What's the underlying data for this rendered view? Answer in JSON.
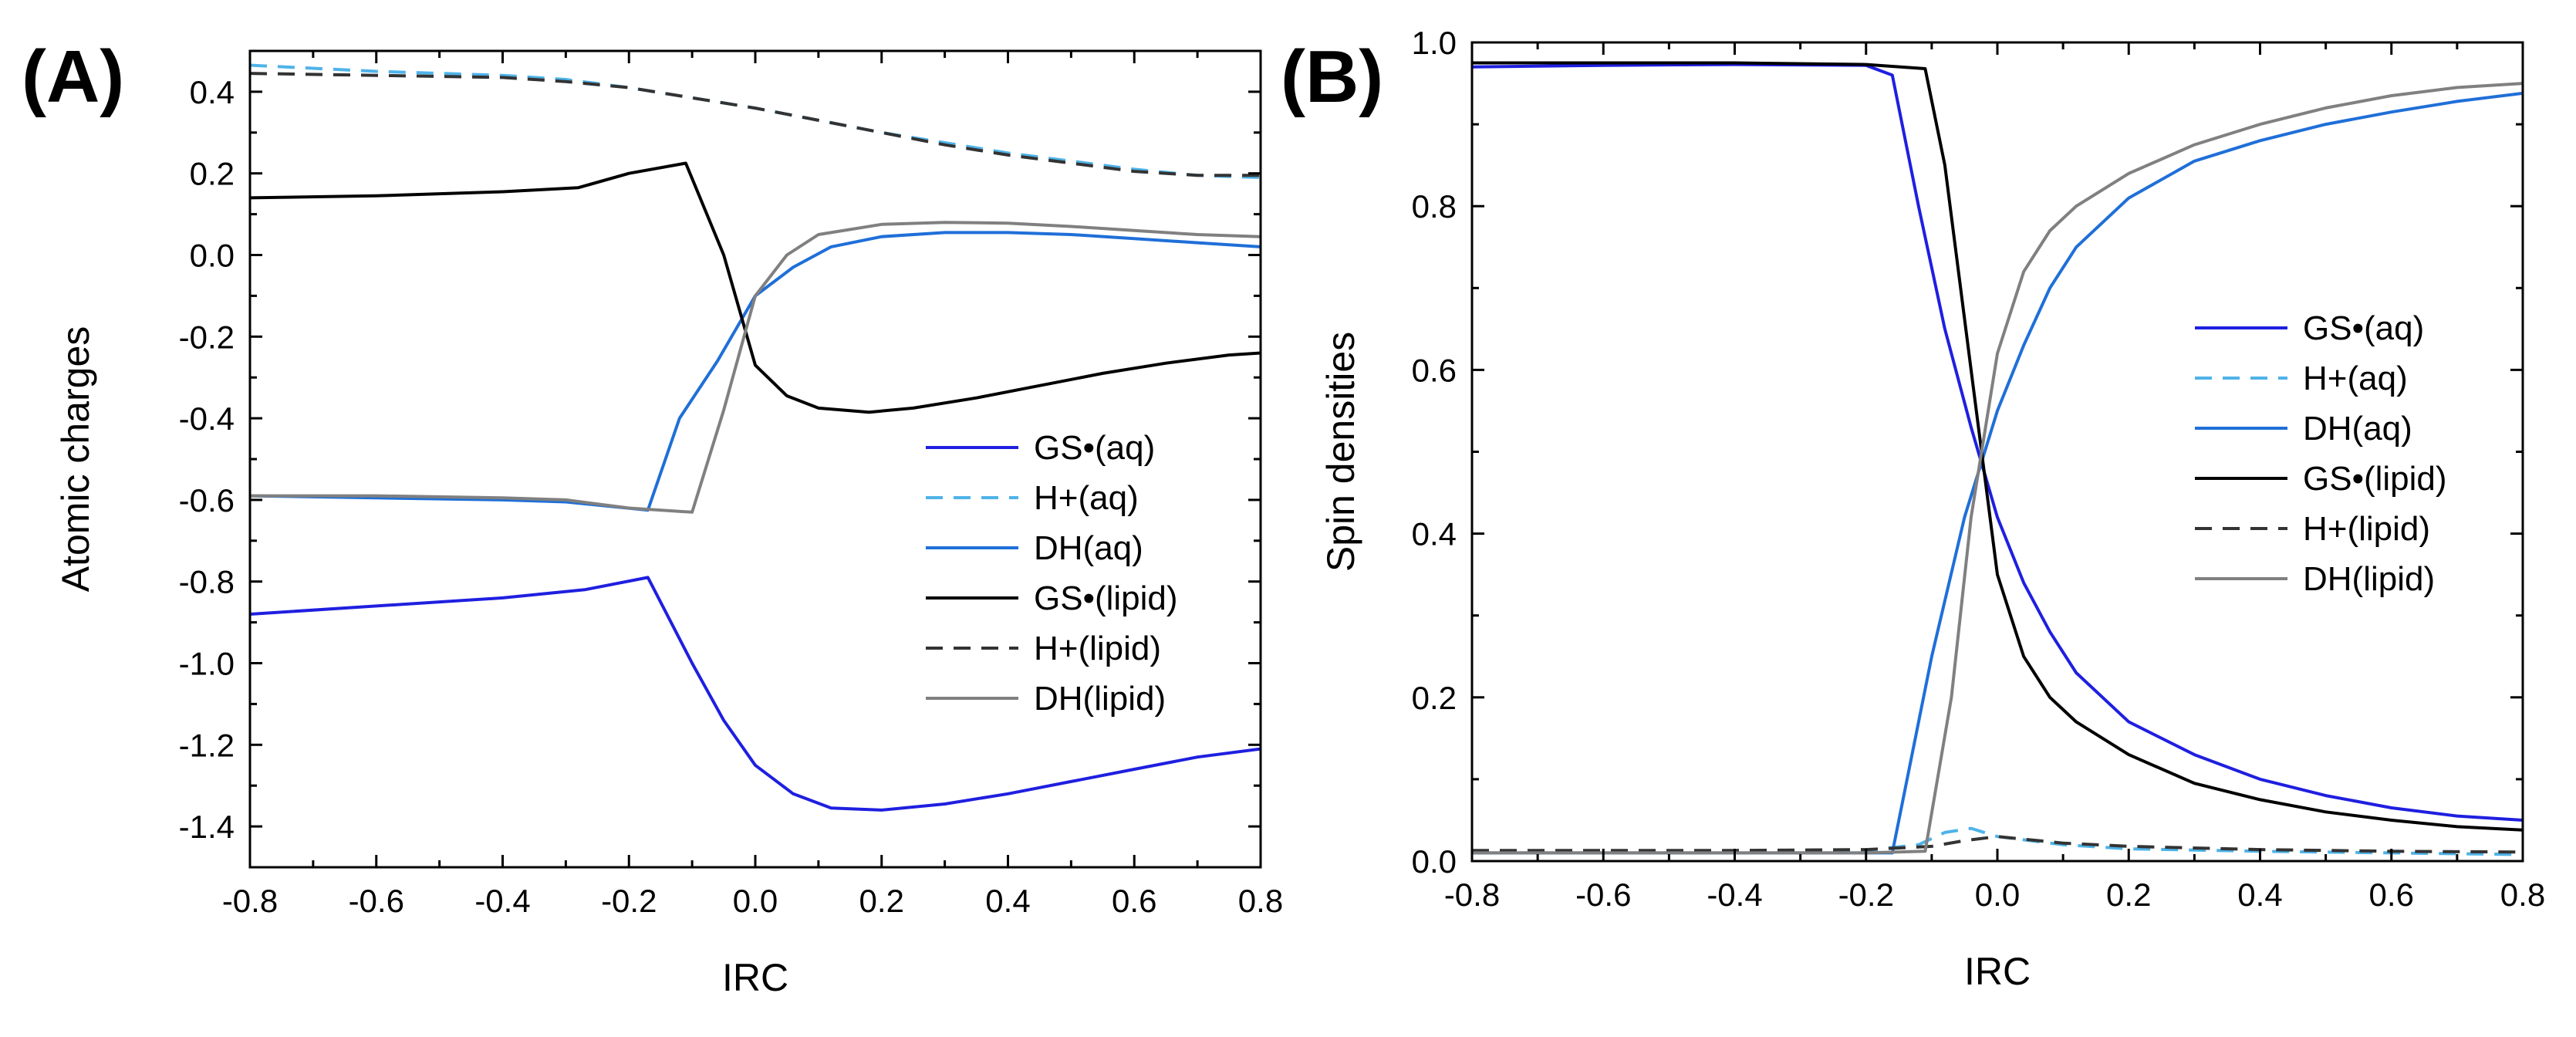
{
  "chart_data": [
    {
      "type": "line",
      "panel_label": "(A)",
      "xlabel": "IRC",
      "ylabel": "Atomic charges",
      "xlim": [
        -0.8,
        0.8
      ],
      "ylim": [
        -1.5,
        0.5
      ],
      "xticks": [
        -0.8,
        -0.6,
        -0.4,
        -0.2,
        0.0,
        0.2,
        0.4,
        0.6,
        0.8
      ],
      "xtick_labels": [
        "-0.8",
        "-0.6",
        "-0.4",
        "-0.2",
        "0.0",
        "0.2",
        "0.4",
        "0.6",
        "0.8"
      ],
      "yticks": [
        -1.4,
        -1.2,
        -1.0,
        -0.8,
        -0.6,
        -0.4,
        -0.2,
        0.0,
        0.2,
        0.4
      ],
      "ytick_labels": [
        "-1.4",
        "-1.2",
        "-1.0",
        "-0.8",
        "-0.6",
        "-0.4",
        "-0.2",
        "0.0",
        "0.2",
        "0.4"
      ],
      "legend_position": "center-right",
      "series": [
        {
          "name": "GS•(aq)",
          "color": "#1f1fe0",
          "dash": "solid",
          "x": [
            -0.8,
            -0.6,
            -0.4,
            -0.27,
            -0.17,
            -0.1,
            -0.05,
            0.0,
            0.06,
            0.12,
            0.2,
            0.3,
            0.4,
            0.5,
            0.6,
            0.7,
            0.8
          ],
          "y": [
            -0.88,
            -0.86,
            -0.84,
            -0.82,
            -0.79,
            -1.0,
            -1.14,
            -1.25,
            -1.32,
            -1.355,
            -1.36,
            -1.345,
            -1.32,
            -1.29,
            -1.26,
            -1.23,
            -1.21
          ]
        },
        {
          "name": "H+(aq)",
          "color": "#4fb3e8",
          "dash": "dashed",
          "x": [
            -0.8,
            -0.6,
            -0.4,
            -0.3,
            -0.2,
            -0.1,
            0.0,
            0.1,
            0.2,
            0.3,
            0.4,
            0.5,
            0.6,
            0.7,
            0.8
          ],
          "y": [
            0.465,
            0.45,
            0.44,
            0.43,
            0.41,
            0.385,
            0.36,
            0.33,
            0.3,
            0.275,
            0.25,
            0.23,
            0.21,
            0.195,
            0.19
          ]
        },
        {
          "name": "DH(aq)",
          "color": "#1f6fd8",
          "dash": "solid",
          "x": [
            -0.8,
            -0.6,
            -0.4,
            -0.3,
            -0.17,
            -0.12,
            -0.06,
            0.0,
            0.06,
            0.12,
            0.2,
            0.3,
            0.4,
            0.5,
            0.6,
            0.7,
            0.8
          ],
          "y": [
            -0.59,
            -0.595,
            -0.6,
            -0.605,
            -0.625,
            -0.4,
            -0.26,
            -0.1,
            -0.03,
            0.02,
            0.045,
            0.055,
            0.055,
            0.05,
            0.04,
            0.03,
            0.02
          ]
        },
        {
          "name": "GS•(lipid)",
          "color": "#000000",
          "dash": "solid",
          "x": [
            -0.8,
            -0.6,
            -0.4,
            -0.28,
            -0.2,
            -0.11,
            -0.05,
            0.0,
            0.05,
            0.1,
            0.18,
            0.25,
            0.35,
            0.45,
            0.55,
            0.65,
            0.75,
            0.8
          ],
          "y": [
            0.14,
            0.145,
            0.155,
            0.165,
            0.2,
            0.225,
            0.0,
            -0.27,
            -0.345,
            -0.375,
            -0.385,
            -0.375,
            -0.35,
            -0.32,
            -0.29,
            -0.265,
            -0.245,
            -0.24
          ]
        },
        {
          "name": "H+(lipid)",
          "color": "#333333",
          "dash": "dashed",
          "x": [
            -0.8,
            -0.6,
            -0.4,
            -0.3,
            -0.2,
            -0.1,
            0.0,
            0.1,
            0.2,
            0.3,
            0.4,
            0.5,
            0.6,
            0.7,
            0.8
          ],
          "y": [
            0.445,
            0.44,
            0.435,
            0.425,
            0.41,
            0.385,
            0.36,
            0.33,
            0.3,
            0.27,
            0.245,
            0.225,
            0.205,
            0.195,
            0.195
          ]
        },
        {
          "name": "DH(lipid)",
          "color": "#808080",
          "dash": "solid",
          "x": [
            -0.8,
            -0.6,
            -0.4,
            -0.3,
            -0.2,
            -0.1,
            -0.05,
            0.0,
            0.05,
            0.1,
            0.2,
            0.3,
            0.4,
            0.5,
            0.6,
            0.7,
            0.8
          ],
          "y": [
            -0.59,
            -0.59,
            -0.595,
            -0.6,
            -0.62,
            -0.63,
            -0.38,
            -0.1,
            0.0,
            0.05,
            0.075,
            0.08,
            0.078,
            0.07,
            0.06,
            0.05,
            0.045
          ]
        }
      ]
    },
    {
      "type": "line",
      "panel_label": "(B)",
      "xlabel": "IRC",
      "ylabel": "Spin densities",
      "xlim": [
        -0.8,
        0.8
      ],
      "ylim": [
        0.0,
        1.0
      ],
      "xticks": [
        -0.8,
        -0.6,
        -0.4,
        -0.2,
        0.0,
        0.2,
        0.4,
        0.6,
        0.8
      ],
      "xtick_labels": [
        "-0.8",
        "-0.6",
        "-0.4",
        "-0.2",
        "0.0",
        "0.2",
        "0.4",
        "0.6",
        "0.8"
      ],
      "yticks": [
        0.0,
        0.2,
        0.4,
        0.6,
        0.8,
        1.0
      ],
      "ytick_labels": [
        "0.0",
        "0.2",
        "0.4",
        "0.6",
        "0.8",
        "1.0"
      ],
      "legend_position": "center-right",
      "series": [
        {
          "name": "GS•(aq)",
          "color": "#1f1fe0",
          "dash": "solid",
          "x": [
            -0.8,
            -0.6,
            -0.4,
            -0.2,
            -0.16,
            -0.12,
            -0.08,
            -0.04,
            0.0,
            0.04,
            0.08,
            0.12,
            0.2,
            0.3,
            0.4,
            0.5,
            0.6,
            0.7,
            0.8
          ],
          "y": [
            0.97,
            0.972,
            0.973,
            0.972,
            0.96,
            0.8,
            0.65,
            0.53,
            0.42,
            0.34,
            0.28,
            0.23,
            0.17,
            0.13,
            0.1,
            0.08,
            0.065,
            0.055,
            0.05
          ]
        },
        {
          "name": "H+(aq)",
          "color": "#4fb3e8",
          "dash": "dashed",
          "x": [
            -0.8,
            -0.4,
            -0.2,
            -0.12,
            -0.08,
            -0.04,
            0.0,
            0.1,
            0.2,
            0.4,
            0.6,
            0.8
          ],
          "y": [
            0.012,
            0.012,
            0.013,
            0.02,
            0.035,
            0.04,
            0.03,
            0.02,
            0.015,
            0.012,
            0.01,
            0.008
          ]
        },
        {
          "name": "DH(aq)",
          "color": "#1f6fd8",
          "dash": "solid",
          "x": [
            -0.8,
            -0.6,
            -0.4,
            -0.2,
            -0.16,
            -0.1,
            -0.05,
            0.0,
            0.04,
            0.08,
            0.12,
            0.2,
            0.3,
            0.4,
            0.5,
            0.6,
            0.7,
            0.8
          ],
          "y": [
            0.01,
            0.01,
            0.01,
            0.01,
            0.01,
            0.25,
            0.42,
            0.55,
            0.63,
            0.7,
            0.75,
            0.81,
            0.855,
            0.88,
            0.9,
            0.915,
            0.928,
            0.938
          ]
        },
        {
          "name": "GS•(lipid)",
          "color": "#000000",
          "dash": "solid",
          "x": [
            -0.8,
            -0.6,
            -0.4,
            -0.2,
            -0.11,
            -0.08,
            -0.04,
            0.0,
            0.04,
            0.08,
            0.12,
            0.2,
            0.3,
            0.4,
            0.5,
            0.6,
            0.7,
            0.8
          ],
          "y": [
            0.975,
            0.975,
            0.975,
            0.973,
            0.968,
            0.85,
            0.6,
            0.35,
            0.25,
            0.2,
            0.17,
            0.13,
            0.095,
            0.075,
            0.06,
            0.05,
            0.042,
            0.038
          ]
        },
        {
          "name": "H+(lipid)",
          "color": "#333333",
          "dash": "dashed",
          "x": [
            -0.8,
            -0.4,
            -0.2,
            -0.1,
            -0.05,
            0.0,
            0.1,
            0.2,
            0.4,
            0.6,
            0.8
          ],
          "y": [
            0.013,
            0.013,
            0.014,
            0.018,
            0.025,
            0.03,
            0.022,
            0.018,
            0.014,
            0.012,
            0.011
          ]
        },
        {
          "name": "DH(lipid)",
          "color": "#808080",
          "dash": "solid",
          "x": [
            -0.8,
            -0.6,
            -0.4,
            -0.2,
            -0.11,
            -0.07,
            -0.04,
            0.0,
            0.04,
            0.08,
            0.12,
            0.2,
            0.3,
            0.4,
            0.5,
            0.6,
            0.7,
            0.8
          ],
          "y": [
            0.01,
            0.01,
            0.01,
            0.01,
            0.012,
            0.2,
            0.42,
            0.62,
            0.72,
            0.77,
            0.8,
            0.84,
            0.875,
            0.9,
            0.92,
            0.935,
            0.945,
            0.95
          ]
        }
      ]
    }
  ]
}
